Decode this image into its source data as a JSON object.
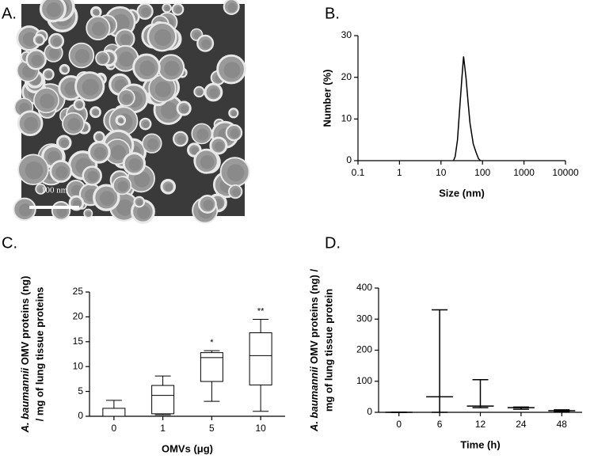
{
  "image": {
    "panel_label": "A.",
    "scale_bar_label": "100 nm"
  },
  "chart_data": [
    {
      "type": "line",
      "panel_label": "B.",
      "xlabel": "Size (nm)",
      "ylabel": "Number (%)",
      "xscale": "log",
      "xlim": [
        0.1,
        10000
      ],
      "xticks": [
        0.1,
        1,
        10,
        100,
        1000,
        10000
      ],
      "ylim": [
        0,
        30
      ],
      "yticks": [
        0,
        10,
        20,
        30
      ],
      "color": "#000000",
      "x": [
        20,
        22,
        25,
        28,
        32,
        35,
        40,
        45,
        50,
        60,
        70,
        80,
        90
      ],
      "values": [
        0,
        1,
        5,
        12,
        20,
        25,
        20,
        14,
        9,
        4,
        2,
        0.5,
        0
      ]
    },
    {
      "type": "box",
      "panel_label": "C.",
      "xlabel": "OMVs (μg)",
      "ylabel": {
        "italic": "A. baumannii",
        "text": " OMV proteins (ng)",
        "line2": "/ mg of lung tissue proteins"
      },
      "ylim": [
        0,
        25
      ],
      "yticks": [
        0,
        5,
        10,
        15,
        20,
        25
      ],
      "color": "#000000",
      "categories": [
        "0",
        "1",
        "5",
        "10"
      ],
      "min": [
        0,
        0.3,
        3,
        1
      ],
      "q1": [
        0,
        0.5,
        7,
        6.3
      ],
      "median": [
        0,
        4.2,
        11.8,
        12.2
      ],
      "q3": [
        1.6,
        6.2,
        12.8,
        16.8
      ],
      "max": [
        3.2,
        8.1,
        13.2,
        19.5
      ],
      "annotations": [
        null,
        null,
        "*",
        "**"
      ]
    },
    {
      "type": "range",
      "panel_label": "D.",
      "xlabel": "Time (h)",
      "ylabel": {
        "italic": "A. baumannii",
        "text": " OMV proteins (ng) /",
        "line2": "mg of lung tissue protein"
      },
      "ylim": [
        0,
        400
      ],
      "yticks": [
        0,
        100,
        200,
        300,
        400
      ],
      "color": "#000000",
      "categories": [
        "0",
        "6",
        "12",
        "24",
        "48"
      ],
      "min": [
        0,
        0,
        15,
        10,
        2
      ],
      "median": [
        0,
        50,
        20,
        15,
        5
      ],
      "max": [
        0,
        330,
        105,
        17,
        8
      ]
    }
  ]
}
